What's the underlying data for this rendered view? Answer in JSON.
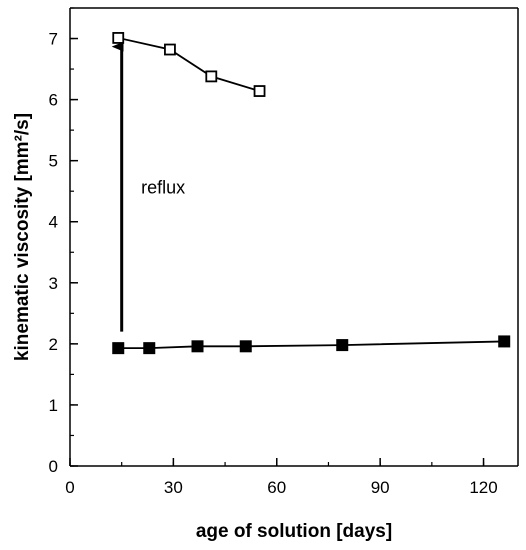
{
  "chart_data": {
    "type": "scatter",
    "xlabel": "age of solution [days]",
    "ylabel": "kinematic viscosity [mm²/s]",
    "xlim": [
      0,
      130
    ],
    "ylim": [
      0,
      7.5
    ],
    "xticks": [
      0,
      30,
      60,
      90,
      120
    ],
    "yticks": [
      0,
      1,
      2,
      3,
      4,
      5,
      6,
      7
    ],
    "grid": false,
    "series": [
      {
        "marker": "filled-square",
        "line": true,
        "color": "#000000",
        "points": [
          [
            14,
            1.93
          ],
          [
            23,
            1.93
          ],
          [
            37,
            1.96
          ],
          [
            51,
            1.96
          ],
          [
            79,
            1.98
          ],
          [
            126,
            2.04
          ]
        ]
      },
      {
        "marker": "open-square",
        "line": true,
        "color": "#000000",
        "points": [
          [
            14,
            7.01
          ],
          [
            29,
            6.82
          ],
          [
            41,
            6.38
          ],
          [
            55,
            6.14
          ]
        ]
      }
    ],
    "annotations": [
      {
        "text": "reflux",
        "x": 16,
        "y": 4.4
      }
    ],
    "arrow": {
      "from": [
        15,
        2.2
      ],
      "to": [
        15,
        6.9
      ]
    }
  }
}
